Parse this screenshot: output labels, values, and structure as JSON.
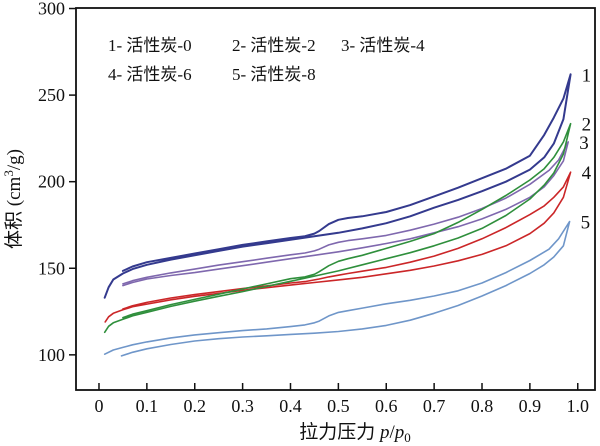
{
  "figure": {
    "description": "Nitrogen adsorption-desorption isotherms of activated carbons"
  },
  "chart_data": {
    "type": "line",
    "title": "",
    "xlabel_parts": {
      "main": "拉力压力 ",
      "p1": "p",
      "slash": "/",
      "p2": "p",
      "sub": "0"
    },
    "ylabel_parts": {
      "prefix": "体积 (cm",
      "sup": "3",
      "suffix": "/g)"
    },
    "xlim": [
      -0.048,
      1.036
    ],
    "ylim": [
      79.7,
      300.3
    ],
    "x_ticks": [
      0,
      0.1,
      0.2,
      0.3,
      0.4,
      0.5,
      0.6,
      0.7,
      0.8,
      0.9,
      1.0
    ],
    "x_tick_labels": [
      "0",
      "0.1",
      "0.2",
      "0.3",
      "0.4",
      "0.5",
      "0.6",
      "0.7",
      "0.8",
      "0.9",
      "1.0"
    ],
    "y_ticks": [
      100,
      150,
      200,
      250,
      300
    ],
    "y_tick_labels": [
      "100",
      "150",
      "200",
      "250",
      "300"
    ],
    "grid": false,
    "legend_position": "inside-top-left",
    "legend": {
      "rows": [
        [
          "1- 活性炭-0",
          "2- 活性炭-2",
          "3- 活性炭-4"
        ],
        [
          "4- 活性炭-6",
          "5- 活性炭-8"
        ]
      ]
    },
    "axis_color": "#111111",
    "series": [
      {
        "id": "5",
        "name": "活性炭-8",
        "end_label": "5",
        "color": "#6f96c9",
        "width": 1.6,
        "adsorption": [
          [
            0.047,
            99.4
          ],
          [
            0.07,
            101.5
          ],
          [
            0.1,
            103.5
          ],
          [
            0.15,
            106
          ],
          [
            0.2,
            108
          ],
          [
            0.25,
            109.3
          ],
          [
            0.3,
            110.3
          ],
          [
            0.35,
            111
          ],
          [
            0.4,
            111.8
          ],
          [
            0.45,
            112.5
          ],
          [
            0.5,
            113.5
          ],
          [
            0.55,
            115
          ],
          [
            0.6,
            117
          ],
          [
            0.65,
            120
          ],
          [
            0.7,
            124
          ],
          [
            0.75,
            128.5
          ],
          [
            0.8,
            134
          ],
          [
            0.85,
            140
          ],
          [
            0.9,
            147
          ],
          [
            0.93,
            152
          ],
          [
            0.95,
            156.5
          ],
          [
            0.97,
            163
          ],
          [
            0.983,
            177
          ]
        ],
        "desorption": [
          [
            0.96,
            167
          ],
          [
            0.94,
            161
          ],
          [
            0.9,
            154.5
          ],
          [
            0.85,
            147.5
          ],
          [
            0.8,
            141.5
          ],
          [
            0.75,
            137
          ],
          [
            0.7,
            134
          ],
          [
            0.65,
            131.5
          ],
          [
            0.6,
            129.5
          ],
          [
            0.55,
            127
          ],
          [
            0.52,
            125.5
          ],
          [
            0.5,
            124.5
          ],
          [
            0.48,
            122.5
          ],
          [
            0.46,
            119.5
          ],
          [
            0.45,
            118.5
          ],
          [
            0.43,
            117.3
          ],
          [
            0.4,
            116.3
          ],
          [
            0.35,
            115
          ],
          [
            0.3,
            114
          ],
          [
            0.25,
            112.8
          ],
          [
            0.2,
            111.5
          ],
          [
            0.15,
            109.8
          ],
          [
            0.1,
            107.5
          ],
          [
            0.07,
            105.8
          ],
          [
            0.05,
            104.3
          ],
          [
            0.03,
            102.8
          ],
          [
            0.012,
            100.4
          ]
        ]
      },
      {
        "id": "4",
        "name": "活性炭-6",
        "end_label": "4",
        "color": "#cb2628",
        "width": 1.6,
        "adsorption": [
          [
            0.013,
            119
          ],
          [
            0.02,
            122
          ],
          [
            0.03,
            124
          ],
          [
            0.05,
            126
          ],
          [
            0.07,
            127.8
          ],
          [
            0.1,
            129.3
          ],
          [
            0.15,
            131.8
          ],
          [
            0.2,
            133.8
          ],
          [
            0.25,
            135.5
          ],
          [
            0.3,
            137.3
          ],
          [
            0.35,
            138.8
          ],
          [
            0.4,
            140.3
          ],
          [
            0.45,
            141.8
          ],
          [
            0.5,
            143.3
          ],
          [
            0.55,
            144.8
          ],
          [
            0.6,
            146.8
          ],
          [
            0.65,
            148.8
          ],
          [
            0.7,
            151.3
          ],
          [
            0.75,
            154.3
          ],
          [
            0.8,
            158
          ],
          [
            0.85,
            163
          ],
          [
            0.9,
            170
          ],
          [
            0.93,
            176
          ],
          [
            0.95,
            182
          ],
          [
            0.97,
            191
          ],
          [
            0.985,
            205.5
          ]
        ],
        "desorption": [
          [
            0.97,
            197
          ],
          [
            0.95,
            191
          ],
          [
            0.93,
            186
          ],
          [
            0.9,
            181
          ],
          [
            0.85,
            173.5
          ],
          [
            0.8,
            167
          ],
          [
            0.75,
            161.5
          ],
          [
            0.7,
            157
          ],
          [
            0.65,
            153.5
          ],
          [
            0.6,
            150.5
          ],
          [
            0.55,
            148.3
          ],
          [
            0.52,
            147
          ],
          [
            0.5,
            146
          ],
          [
            0.48,
            145
          ],
          [
            0.46,
            143.8
          ],
          [
            0.45,
            143.3
          ],
          [
            0.43,
            142.3
          ],
          [
            0.4,
            141.5
          ],
          [
            0.35,
            139.8
          ],
          [
            0.3,
            138.3
          ],
          [
            0.25,
            136.5
          ],
          [
            0.2,
            134.8
          ],
          [
            0.15,
            132.8
          ],
          [
            0.1,
            130.3
          ],
          [
            0.07,
            128.3
          ],
          [
            0.05,
            126.5
          ]
        ]
      },
      {
        "id": "3",
        "name": "活性炭-4",
        "end_label": "3",
        "color": "#7f68ae",
        "width": 1.6,
        "adsorption": [
          [
            0.05,
            140
          ],
          [
            0.07,
            141.8
          ],
          [
            0.1,
            143.8
          ],
          [
            0.15,
            145.8
          ],
          [
            0.2,
            147.5
          ],
          [
            0.25,
            149.5
          ],
          [
            0.3,
            151.5
          ],
          [
            0.35,
            153.5
          ],
          [
            0.4,
            155.5
          ],
          [
            0.45,
            157.5
          ],
          [
            0.5,
            159.5
          ],
          [
            0.55,
            161.8
          ],
          [
            0.6,
            164.3
          ],
          [
            0.65,
            167
          ],
          [
            0.7,
            170.5
          ],
          [
            0.75,
            174
          ],
          [
            0.8,
            178.5
          ],
          [
            0.85,
            184
          ],
          [
            0.9,
            191
          ],
          [
            0.93,
            197
          ],
          [
            0.95,
            203.5
          ],
          [
            0.97,
            212
          ],
          [
            0.98,
            223
          ]
        ],
        "desorption": [
          [
            0.96,
            212.5
          ],
          [
            0.94,
            206.5
          ],
          [
            0.9,
            198.5
          ],
          [
            0.85,
            190.5
          ],
          [
            0.8,
            184.5
          ],
          [
            0.75,
            179.5
          ],
          [
            0.7,
            175.5
          ],
          [
            0.65,
            172
          ],
          [
            0.6,
            169
          ],
          [
            0.55,
            167
          ],
          [
            0.52,
            166
          ],
          [
            0.5,
            165
          ],
          [
            0.48,
            163.5
          ],
          [
            0.46,
            161
          ],
          [
            0.45,
            160
          ],
          [
            0.43,
            158.8
          ],
          [
            0.4,
            157.8
          ],
          [
            0.35,
            155.8
          ],
          [
            0.3,
            153.8
          ],
          [
            0.25,
            151.8
          ],
          [
            0.2,
            149.5
          ],
          [
            0.15,
            147.3
          ],
          [
            0.1,
            144.8
          ],
          [
            0.07,
            142.8
          ],
          [
            0.05,
            141
          ]
        ]
      },
      {
        "id": "2",
        "name": "活性炭-2",
        "end_label": "2",
        "color": "#2f8f3c",
        "width": 1.6,
        "adsorption": [
          [
            0.012,
            113
          ],
          [
            0.02,
            116.5
          ],
          [
            0.03,
            118.5
          ],
          [
            0.05,
            120.5
          ],
          [
            0.07,
            122.5
          ],
          [
            0.1,
            124.5
          ],
          [
            0.15,
            128
          ],
          [
            0.2,
            131
          ],
          [
            0.25,
            133.8
          ],
          [
            0.3,
            136.5
          ],
          [
            0.35,
            139.5
          ],
          [
            0.4,
            142.5
          ],
          [
            0.45,
            145.5
          ],
          [
            0.5,
            148.5
          ],
          [
            0.55,
            152
          ],
          [
            0.6,
            155.5
          ],
          [
            0.65,
            159
          ],
          [
            0.7,
            163
          ],
          [
            0.75,
            167.5
          ],
          [
            0.8,
            173
          ],
          [
            0.85,
            180.5
          ],
          [
            0.9,
            190
          ],
          [
            0.93,
            198
          ],
          [
            0.95,
            205
          ],
          [
            0.97,
            216
          ],
          [
            0.985,
            233.5
          ]
        ],
        "desorption": [
          [
            0.97,
            223
          ],
          [
            0.95,
            214
          ],
          [
            0.93,
            207.5
          ],
          [
            0.9,
            201
          ],
          [
            0.85,
            192
          ],
          [
            0.8,
            184
          ],
          [
            0.75,
            176.5
          ],
          [
            0.7,
            170
          ],
          [
            0.65,
            165.5
          ],
          [
            0.6,
            161.5
          ],
          [
            0.55,
            157.5
          ],
          [
            0.52,
            155.5
          ],
          [
            0.5,
            154
          ],
          [
            0.48,
            151.5
          ],
          [
            0.46,
            148
          ],
          [
            0.45,
            146.5
          ],
          [
            0.43,
            145
          ],
          [
            0.4,
            144
          ],
          [
            0.35,
            141
          ],
          [
            0.3,
            138
          ],
          [
            0.25,
            135
          ],
          [
            0.2,
            132
          ],
          [
            0.15,
            129
          ],
          [
            0.1,
            125.5
          ],
          [
            0.07,
            123.5
          ],
          [
            0.05,
            121.5
          ]
        ]
      },
      {
        "id": "1",
        "name": "活性炭-0",
        "end_label": "1",
        "color": "#343a8e",
        "width": 2.0,
        "adsorption": [
          [
            0.012,
            133
          ],
          [
            0.02,
            139
          ],
          [
            0.03,
            143.5
          ],
          [
            0.05,
            147
          ],
          [
            0.07,
            149.5
          ],
          [
            0.1,
            152
          ],
          [
            0.15,
            155
          ],
          [
            0.2,
            157.5
          ],
          [
            0.25,
            160
          ],
          [
            0.3,
            162.5
          ],
          [
            0.35,
            164.5
          ],
          [
            0.4,
            166.5
          ],
          [
            0.45,
            168.5
          ],
          [
            0.5,
            170.5
          ],
          [
            0.55,
            173
          ],
          [
            0.6,
            176
          ],
          [
            0.65,
            180
          ],
          [
            0.7,
            185
          ],
          [
            0.75,
            189.5
          ],
          [
            0.8,
            194.5
          ],
          [
            0.85,
            200
          ],
          [
            0.9,
            207
          ],
          [
            0.93,
            214
          ],
          [
            0.95,
            222
          ],
          [
            0.97,
            236
          ],
          [
            0.985,
            262
          ]
        ],
        "desorption": [
          [
            0.97,
            248
          ],
          [
            0.95,
            237
          ],
          [
            0.93,
            227
          ],
          [
            0.9,
            215
          ],
          [
            0.85,
            207.5
          ],
          [
            0.8,
            202
          ],
          [
            0.75,
            196.5
          ],
          [
            0.7,
            191.5
          ],
          [
            0.65,
            186.5
          ],
          [
            0.6,
            182.5
          ],
          [
            0.55,
            180
          ],
          [
            0.52,
            179
          ],
          [
            0.5,
            178
          ],
          [
            0.48,
            175.5
          ],
          [
            0.46,
            171.5
          ],
          [
            0.45,
            170
          ],
          [
            0.43,
            168.5
          ],
          [
            0.4,
            167.5
          ],
          [
            0.35,
            165.5
          ],
          [
            0.3,
            163.5
          ],
          [
            0.25,
            161
          ],
          [
            0.2,
            158.5
          ],
          [
            0.15,
            156
          ],
          [
            0.1,
            153.5
          ],
          [
            0.07,
            151
          ],
          [
            0.05,
            148.5
          ]
        ]
      }
    ]
  }
}
